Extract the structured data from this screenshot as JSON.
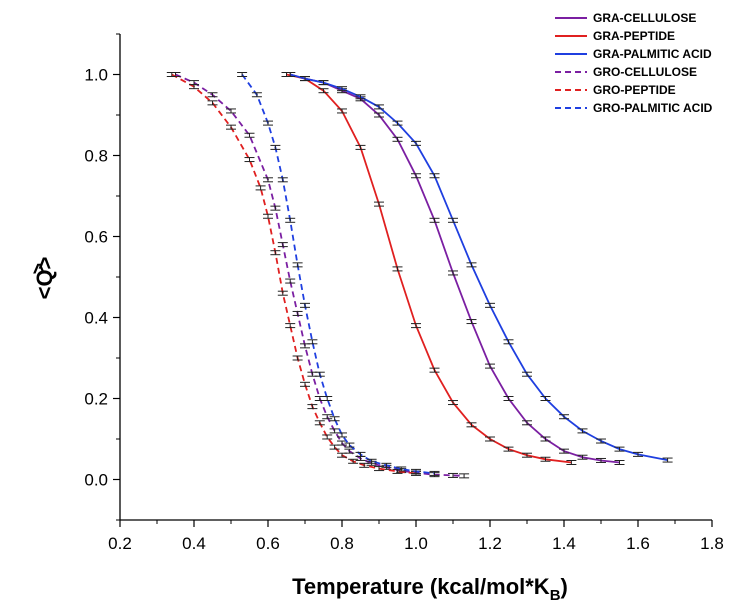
{
  "chart_data": {
    "type": "line",
    "xlabel": "Temperature (kcal/mol*K",
    "xlabel_sub": "B",
    "xlabel_close": ")",
    "ylabel": "<Q>",
    "ylabel_top": "^",
    "xlim": [
      0.2,
      1.8
    ],
    "ylim": [
      -0.1,
      1.1
    ],
    "x_ticks": [
      0.2,
      0.4,
      0.6,
      0.8,
      1.0,
      1.2,
      1.4,
      1.6,
      1.8
    ],
    "x_tick_labels": [
      "0.2",
      "0.4",
      "0.6",
      "0.8",
      "1.0",
      "1.2",
      "1.4",
      "1.6",
      "1.8"
    ],
    "y_ticks": [
      0.0,
      0.2,
      0.4,
      0.6,
      0.8,
      1.0
    ],
    "y_tick_labels": [
      "0.0",
      "0.2",
      "0.4",
      "0.6",
      "0.8",
      "1.0"
    ],
    "grid": false,
    "legend_position": "top-right",
    "series": [
      {
        "name": "GRA-CELLULOSE",
        "color": "#7b1fa2",
        "dash": "solid",
        "x": [
          0.66,
          0.7,
          0.75,
          0.8,
          0.85,
          0.9,
          0.95,
          1.0,
          1.05,
          1.1,
          1.15,
          1.2,
          1.25,
          1.3,
          1.35,
          1.4,
          1.45,
          1.5,
          1.55
        ],
        "y": [
          1.0,
          0.99,
          0.98,
          0.96,
          0.94,
          0.9,
          0.84,
          0.75,
          0.64,
          0.51,
          0.39,
          0.28,
          0.2,
          0.14,
          0.1,
          0.07,
          0.055,
          0.047,
          0.042
        ]
      },
      {
        "name": "GRA-PEPTIDE",
        "color": "#e02020",
        "dash": "solid",
        "x": [
          0.65,
          0.7,
          0.75,
          0.8,
          0.85,
          0.9,
          0.95,
          1.0,
          1.05,
          1.1,
          1.15,
          1.2,
          1.25,
          1.3,
          1.35,
          1.42
        ],
        "y": [
          1.0,
          0.99,
          0.96,
          0.91,
          0.82,
          0.68,
          0.52,
          0.38,
          0.27,
          0.19,
          0.135,
          0.1,
          0.075,
          0.06,
          0.05,
          0.042
        ]
      },
      {
        "name": "GRA-PALMITIC ACID",
        "color": "#1f3fe0",
        "dash": "solid",
        "x": [
          0.66,
          0.7,
          0.75,
          0.8,
          0.85,
          0.9,
          0.95,
          1.0,
          1.05,
          1.1,
          1.15,
          1.2,
          1.25,
          1.3,
          1.35,
          1.4,
          1.45,
          1.5,
          1.55,
          1.6,
          1.68
        ],
        "y": [
          1.0,
          0.99,
          0.98,
          0.965,
          0.945,
          0.92,
          0.88,
          0.83,
          0.75,
          0.64,
          0.53,
          0.43,
          0.34,
          0.26,
          0.2,
          0.155,
          0.12,
          0.095,
          0.075,
          0.062,
          0.048
        ]
      },
      {
        "name": "GRO-CELLULOSE",
        "color": "#7b1fa2",
        "dash": "dashed",
        "x": [
          0.35,
          0.4,
          0.45,
          0.5,
          0.55,
          0.6,
          0.62,
          0.64,
          0.66,
          0.68,
          0.7,
          0.72,
          0.74,
          0.76,
          0.78,
          0.8,
          0.82,
          0.85,
          0.88,
          0.92,
          0.96,
          1.0,
          1.05,
          1.1,
          1.13
        ],
        "y": [
          1.0,
          0.98,
          0.95,
          0.91,
          0.85,
          0.74,
          0.67,
          0.58,
          0.49,
          0.41,
          0.33,
          0.26,
          0.2,
          0.155,
          0.12,
          0.09,
          0.07,
          0.052,
          0.04,
          0.03,
          0.022,
          0.016,
          0.012,
          0.01,
          0.009
        ]
      },
      {
        "name": "GRO-PEPTIDE",
        "color": "#e02020",
        "dash": "dashed",
        "x": [
          0.34,
          0.4,
          0.45,
          0.5,
          0.55,
          0.58,
          0.6,
          0.62,
          0.64,
          0.66,
          0.68,
          0.7,
          0.72,
          0.74,
          0.76,
          0.78,
          0.8,
          0.83,
          0.86,
          0.9,
          0.95,
          1.0
        ],
        "y": [
          1.0,
          0.97,
          0.93,
          0.87,
          0.79,
          0.72,
          0.65,
          0.56,
          0.46,
          0.38,
          0.3,
          0.235,
          0.18,
          0.14,
          0.105,
          0.08,
          0.06,
          0.045,
          0.035,
          0.027,
          0.02,
          0.015
        ]
      },
      {
        "name": "GRO-PALMITIC ACID",
        "color": "#1f3fe0",
        "dash": "dashed",
        "x": [
          0.53,
          0.57,
          0.6,
          0.62,
          0.64,
          0.66,
          0.68,
          0.7,
          0.72,
          0.74,
          0.76,
          0.78,
          0.8,
          0.82,
          0.85,
          0.88,
          0.92,
          0.96,
          1.0,
          1.05
        ],
        "y": [
          1.0,
          0.95,
          0.88,
          0.82,
          0.74,
          0.64,
          0.53,
          0.43,
          0.34,
          0.26,
          0.2,
          0.15,
          0.11,
          0.085,
          0.062,
          0.045,
          0.035,
          0.026,
          0.02,
          0.015
        ]
      }
    ]
  }
}
